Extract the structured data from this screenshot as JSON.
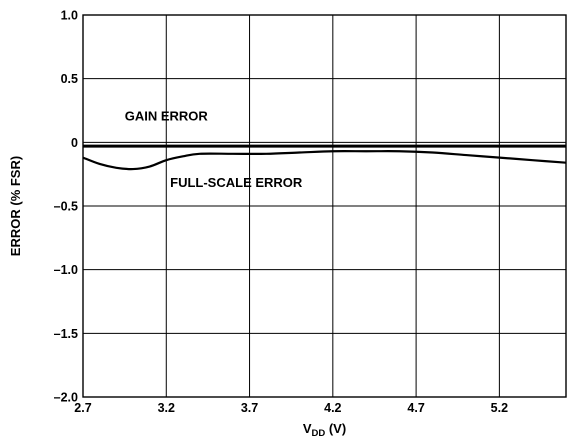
{
  "chart_data": {
    "type": "line",
    "xlabel_main": "V",
    "xlabel_sub": "DD",
    "xlabel_unit": " (V)",
    "ylabel": "ERROR (% FSR)",
    "xlim": [
      2.7,
      5.6
    ],
    "ylim": [
      -2.0,
      1.0
    ],
    "xticks": [
      2.7,
      3.2,
      3.7,
      4.2,
      4.7,
      5.2
    ],
    "xtick_labels": [
      "2.7",
      "3.2",
      "3.7",
      "4.2",
      "4.7",
      "5.2"
    ],
    "yticks": [
      1.0,
      0.5,
      0,
      -0.5,
      -1.0,
      -1.5,
      -2.0
    ],
    "ytick_labels": [
      "1.0",
      "0.5",
      "0",
      "–0.5",
      "–1.0",
      "–1.5",
      "–2.0"
    ],
    "grid": true,
    "annotations": [
      {
        "text": "GAIN ERROR",
        "x": 3.2,
        "y": 0.17
      },
      {
        "text": "FULL-SCALE ERROR",
        "x": 3.62,
        "y": -0.35
      }
    ],
    "series": [
      {
        "name": "GAIN ERROR",
        "x": [
          2.7,
          3.0,
          3.3,
          3.7,
          4.2,
          4.7,
          5.2,
          5.6
        ],
        "y": [
          -0.03,
          -0.03,
          -0.03,
          -0.03,
          -0.03,
          -0.03,
          -0.03,
          -0.03
        ]
      },
      {
        "name": "FULL-SCALE ERROR",
        "x": [
          2.7,
          2.8,
          2.9,
          3.0,
          3.1,
          3.2,
          3.3,
          3.4,
          3.6,
          3.8,
          4.0,
          4.2,
          4.4,
          4.6,
          4.8,
          5.0,
          5.2,
          5.4,
          5.6
        ],
        "y": [
          -0.12,
          -0.17,
          -0.2,
          -0.21,
          -0.19,
          -0.14,
          -0.11,
          -0.09,
          -0.09,
          -0.09,
          -0.08,
          -0.07,
          -0.07,
          -0.07,
          -0.08,
          -0.1,
          -0.12,
          -0.14,
          -0.16
        ]
      }
    ]
  }
}
